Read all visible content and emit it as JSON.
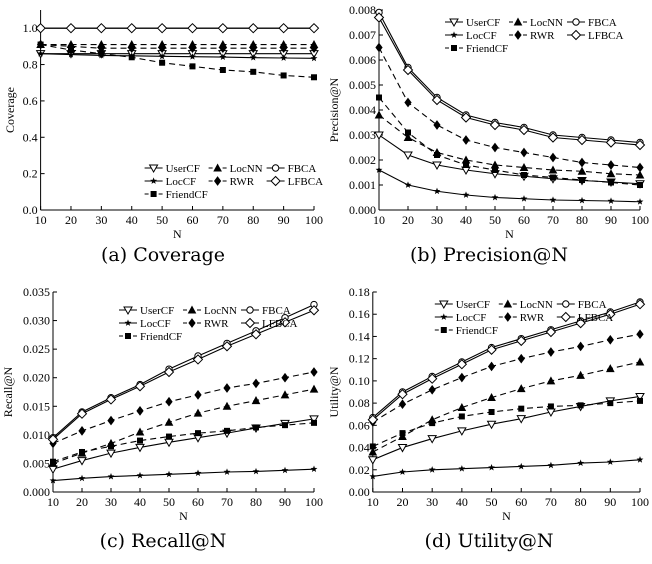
{
  "legend_labels": {
    "UserCF": "UserCF",
    "LocNN": "LocNN",
    "FBCA": "FBCA",
    "LocCF": "LocCF",
    "RWR": "RWR",
    "LFBCA": "LFBCA",
    "FriendCF": "FriendCF"
  },
  "chart_data": [
    {
      "type": "line",
      "caption": "(a) Coverage",
      "xlabel": "N",
      "ylabel": "Coverage",
      "xlim": [
        10,
        100
      ],
      "ylim": [
        0,
        1.1
      ],
      "xticks": [
        10,
        20,
        30,
        40,
        50,
        60,
        70,
        80,
        90,
        100
      ],
      "yticks": [
        0.0,
        0.2,
        0.4,
        0.6,
        0.8,
        1.0
      ],
      "ytick_labels": [
        "0.0",
        "0.2",
        "0.4",
        "0.6",
        "0.8",
        "1.0"
      ],
      "legend_position": "bottom-right",
      "x": [
        10,
        20,
        30,
        40,
        50,
        60,
        70,
        80,
        90,
        100
      ],
      "series": [
        {
          "name": "UserCF",
          "values": [
            0.86,
            0.86,
            0.86,
            0.86,
            0.86,
            0.86,
            0.86,
            0.86,
            0.86,
            0.86
          ]
        },
        {
          "name": "LocNN",
          "values": [
            0.91,
            0.91,
            0.91,
            0.91,
            0.91,
            0.91,
            0.91,
            0.91,
            0.91,
            0.91
          ]
        },
        {
          "name": "FBCA",
          "values": [
            1.0,
            1.0,
            1.0,
            1.0,
            1.0,
            1.0,
            1.0,
            1.0,
            1.0,
            1.0
          ]
        },
        {
          "name": "LocCF",
          "values": [
            0.86,
            0.855,
            0.85,
            0.848,
            0.845,
            0.843,
            0.841,
            0.838,
            0.836,
            0.834
          ]
        },
        {
          "name": "RWR",
          "values": [
            0.91,
            0.9,
            0.89,
            0.89,
            0.89,
            0.89,
            0.89,
            0.89,
            0.89,
            0.89
          ]
        },
        {
          "name": "LFBCA",
          "values": [
            1.0,
            1.0,
            1.0,
            1.0,
            1.0,
            1.0,
            1.0,
            1.0,
            1.0,
            1.0
          ]
        },
        {
          "name": "FriendCF",
          "values": [
            0.91,
            0.88,
            0.86,
            0.84,
            0.81,
            0.79,
            0.77,
            0.76,
            0.74,
            0.73
          ]
        }
      ]
    },
    {
      "type": "line",
      "caption": "(b) Precision@N",
      "xlabel": "N",
      "ylabel": "Precision@N",
      "xlim": [
        10,
        100
      ],
      "ylim": [
        0,
        0.008
      ],
      "xticks": [
        10,
        20,
        30,
        40,
        50,
        60,
        70,
        80,
        90,
        100
      ],
      "yticks": [
        0.0,
        0.001,
        0.002,
        0.003,
        0.004,
        0.005,
        0.006,
        0.007,
        0.008
      ],
      "ytick_labels": [
        "0.000",
        "0.001",
        "0.002",
        "0.003",
        "0.004",
        "0.005",
        "0.006",
        "0.007",
        "0.008"
      ],
      "legend_position": "top-right",
      "x": [
        10,
        20,
        30,
        40,
        50,
        60,
        70,
        80,
        90,
        100
      ],
      "series": [
        {
          "name": "UserCF",
          "values": [
            0.003,
            0.0022,
            0.0018,
            0.0016,
            0.00145,
            0.00135,
            0.00125,
            0.00118,
            0.00112,
            0.00105
          ]
        },
        {
          "name": "LocNN",
          "values": [
            0.0038,
            0.0029,
            0.0023,
            0.002,
            0.0018,
            0.0017,
            0.0016,
            0.00155,
            0.00145,
            0.0014
          ]
        },
        {
          "name": "FBCA",
          "values": [
            0.0079,
            0.0057,
            0.0045,
            0.0038,
            0.0035,
            0.0033,
            0.003,
            0.0029,
            0.0028,
            0.0027
          ]
        },
        {
          "name": "LocCF",
          "values": [
            0.0016,
            0.001,
            0.00075,
            0.0006,
            0.0005,
            0.00045,
            0.0004,
            0.00038,
            0.00036,
            0.00033
          ]
        },
        {
          "name": "RWR",
          "values": [
            0.0065,
            0.0043,
            0.0034,
            0.0028,
            0.0025,
            0.0023,
            0.0021,
            0.0019,
            0.0018,
            0.0017
          ]
        },
        {
          "name": "LFBCA",
          "values": [
            0.0077,
            0.0056,
            0.0044,
            0.0037,
            0.0034,
            0.0032,
            0.0029,
            0.0028,
            0.0027,
            0.0026
          ]
        },
        {
          "name": "FriendCF",
          "values": [
            0.0045,
            0.0031,
            0.0022,
            0.0018,
            0.0016,
            0.0014,
            0.0013,
            0.0012,
            0.0011,
            0.001
          ]
        }
      ]
    },
    {
      "type": "line",
      "caption": "(c) Recall@N",
      "xlabel": "N",
      "ylabel": "Recall@N",
      "xlim": [
        10,
        100
      ],
      "ylim": [
        0,
        0.035
      ],
      "xticks": [
        10,
        20,
        30,
        40,
        50,
        60,
        70,
        80,
        90,
        100
      ],
      "yticks": [
        0.0,
        0.005,
        0.01,
        0.015,
        0.02,
        0.025,
        0.03,
        0.035
      ],
      "ytick_labels": [
        "0.000",
        "0.005",
        "0.010",
        "0.015",
        "0.020",
        "0.025",
        "0.030",
        "0.035"
      ],
      "legend_position": "top-left",
      "x": [
        10,
        20,
        30,
        40,
        50,
        60,
        70,
        80,
        90,
        100
      ],
      "series": [
        {
          "name": "UserCF",
          "values": [
            0.004,
            0.0055,
            0.0068,
            0.0078,
            0.0087,
            0.0095,
            0.0103,
            0.0112,
            0.012,
            0.0128
          ]
        },
        {
          "name": "LocNN",
          "values": [
            0.005,
            0.0068,
            0.0085,
            0.0105,
            0.0122,
            0.0138,
            0.015,
            0.016,
            0.017,
            0.018
          ]
        },
        {
          "name": "FBCA",
          "values": [
            0.0095,
            0.014,
            0.0165,
            0.0188,
            0.0215,
            0.0238,
            0.026,
            0.0282,
            0.0305,
            0.0328
          ]
        },
        {
          "name": "LocCF",
          "values": [
            0.002,
            0.0024,
            0.0027,
            0.0029,
            0.0031,
            0.0033,
            0.0035,
            0.0036,
            0.0038,
            0.004
          ]
        },
        {
          "name": "RWR",
          "values": [
            0.0085,
            0.0107,
            0.0125,
            0.0142,
            0.0158,
            0.017,
            0.0182,
            0.019,
            0.02,
            0.021
          ]
        },
        {
          "name": "LFBCA",
          "values": [
            0.0092,
            0.0137,
            0.0162,
            0.0185,
            0.021,
            0.0232,
            0.0255,
            0.0276,
            0.0297,
            0.0318
          ]
        },
        {
          "name": "FriendCF",
          "values": [
            0.0053,
            0.007,
            0.008,
            0.009,
            0.0097,
            0.0103,
            0.0107,
            0.0113,
            0.0117,
            0.0121
          ]
        }
      ]
    },
    {
      "type": "line",
      "caption": "(d) Utility@N",
      "xlabel": "N",
      "ylabel": "Utility@N",
      "xlim": [
        10,
        100
      ],
      "ylim": [
        0,
        0.18
      ],
      "xticks": [
        10,
        20,
        30,
        40,
        50,
        60,
        70,
        80,
        90,
        100
      ],
      "yticks": [
        0.0,
        0.02,
        0.04,
        0.06,
        0.08,
        0.1,
        0.12,
        0.14,
        0.16,
        0.18
      ],
      "ytick_labels": [
        "0.00",
        "0.02",
        "0.04",
        "0.06",
        "0.08",
        "0.10",
        "0.12",
        "0.14",
        "0.16",
        "0.18"
      ],
      "legend_position": "top-left",
      "x": [
        10,
        20,
        30,
        40,
        50,
        60,
        70,
        80,
        90,
        100
      ],
      "series": [
        {
          "name": "UserCF",
          "values": [
            0.029,
            0.04,
            0.048,
            0.055,
            0.061,
            0.066,
            0.072,
            0.077,
            0.082,
            0.086
          ]
        },
        {
          "name": "LocNN",
          "values": [
            0.036,
            0.05,
            0.065,
            0.076,
            0.085,
            0.093,
            0.1,
            0.105,
            0.111,
            0.117
          ]
        },
        {
          "name": "FBCA",
          "values": [
            0.067,
            0.09,
            0.104,
            0.117,
            0.13,
            0.138,
            0.146,
            0.154,
            0.162,
            0.171
          ]
        },
        {
          "name": "LocCF",
          "values": [
            0.014,
            0.018,
            0.02,
            0.021,
            0.022,
            0.023,
            0.024,
            0.026,
            0.027,
            0.029
          ]
        },
        {
          "name": "RWR",
          "values": [
            0.063,
            0.079,
            0.092,
            0.103,
            0.113,
            0.12,
            0.126,
            0.131,
            0.137,
            0.142
          ]
        },
        {
          "name": "LFBCA",
          "values": [
            0.065,
            0.088,
            0.102,
            0.115,
            0.128,
            0.136,
            0.144,
            0.152,
            0.16,
            0.169
          ]
        },
        {
          "name": "FriendCF",
          "values": [
            0.041,
            0.053,
            0.062,
            0.068,
            0.072,
            0.075,
            0.077,
            0.078,
            0.08,
            0.082
          ]
        }
      ]
    }
  ]
}
